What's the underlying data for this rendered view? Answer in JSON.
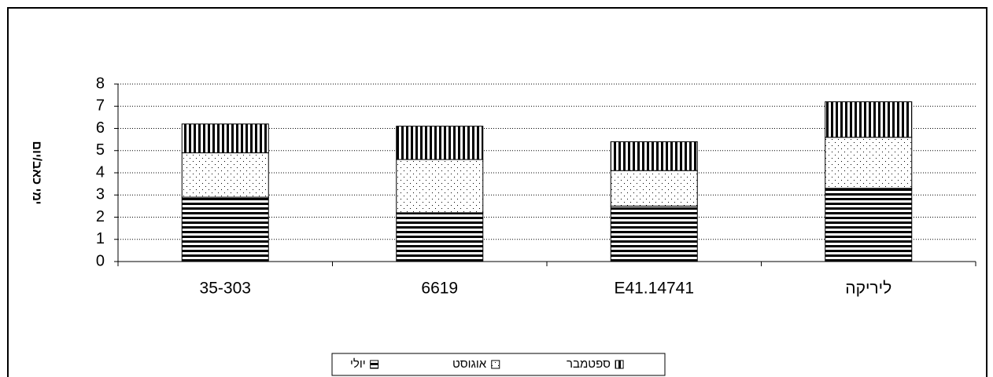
{
  "chart_data": {
    "type": "stacked_bar",
    "y_label": "ימי כאב/יום",
    "categories": [
      "35-303",
      "6619",
      "E41.14741",
      "ליריקה"
    ],
    "series": [
      {
        "name": "יולי",
        "color": "#000000",
        "pattern": "horizontal",
        "values": [
          2.9,
          2.2,
          2.5,
          3.3
        ]
      },
      {
        "name": "אוגוסט",
        "color": "#000000",
        "pattern": "dots",
        "values": [
          2.0,
          2.4,
          1.6,
          2.3
        ]
      },
      {
        "name": "ספטמבר",
        "color": "#000000",
        "pattern": "vertical",
        "values": [
          1.3,
          1.5,
          1.3,
          1.6
        ]
      }
    ],
    "ylim": [
      0,
      8
    ],
    "yticks": [
      0,
      1,
      2,
      3,
      4,
      5,
      6,
      7,
      8
    ],
    "grid": true,
    "legend": "bottom"
  }
}
